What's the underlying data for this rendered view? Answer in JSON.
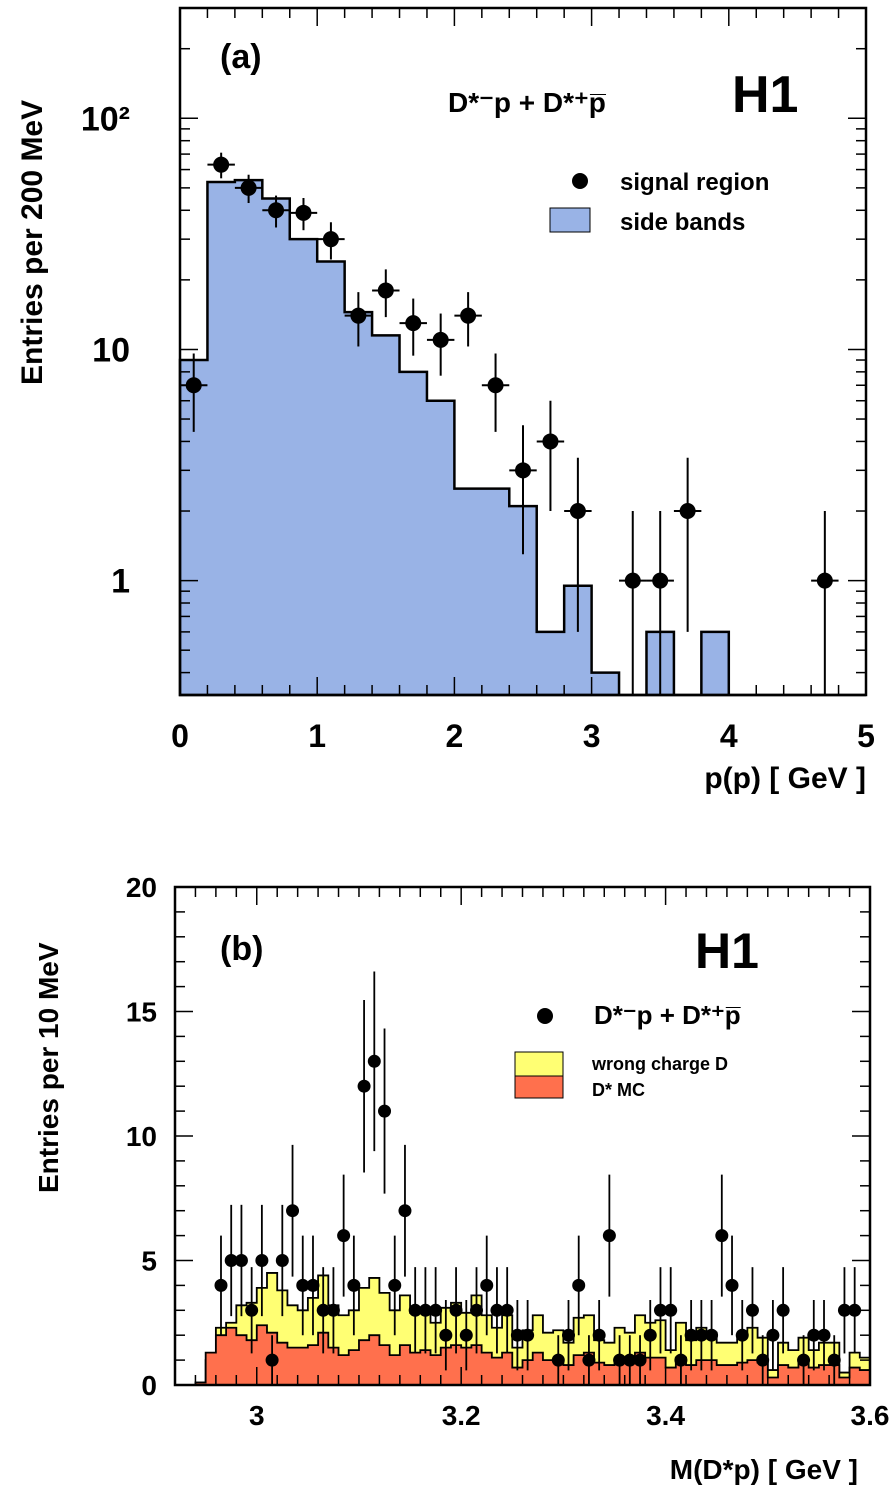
{
  "chart_data": [
    {
      "type": "bar",
      "panel_label": "(a)",
      "experiment": "H1",
      "channel_label": "D*⁻p + D*⁺p̅",
      "xlabel": "p(p) [ GeV ]",
      "ylabel": "Entries per 200 MeV",
      "xlim": [
        0,
        5
      ],
      "ylim": [
        0.32,
        300
      ],
      "yscale": "log",
      "x_ticks": [
        "0",
        "1",
        "2",
        "3",
        "4",
        "5"
      ],
      "y_ticks": [
        {
          "value": 1,
          "label": "1"
        },
        {
          "value": 10,
          "label": "10"
        },
        {
          "value": 100,
          "label": "10²"
        }
      ],
      "legend": {
        "position": "top-right",
        "entries": [
          "signal region",
          "side bands"
        ]
      },
      "colors": {
        "side_bands": "#99b3e6"
      },
      "series": [
        {
          "name": "side bands",
          "kind": "histogram",
          "bin_edges": [
            0.0,
            0.2,
            0.4,
            0.6,
            0.8,
            1.0,
            1.2,
            1.4,
            1.6,
            1.8,
            2.0,
            2.2,
            2.4,
            2.6,
            2.8,
            3.0,
            3.2,
            3.4,
            3.6,
            3.8,
            4.0,
            4.2,
            4.4,
            4.6,
            4.8,
            5.0
          ],
          "values": [
            9,
            53,
            54,
            45,
            30,
            24,
            14.5,
            11.5,
            8,
            6,
            2.5,
            2.5,
            2.1,
            0.6,
            0.95,
            0.4,
            0,
            0.6,
            0,
            0.6,
            0,
            0,
            0,
            0,
            0
          ]
        },
        {
          "name": "signal region",
          "kind": "points",
          "x": [
            0.1,
            0.3,
            0.5,
            0.7,
            0.9,
            1.1,
            1.3,
            1.5,
            1.7,
            1.9,
            2.1,
            2.3,
            2.5,
            2.7,
            2.9,
            3.3,
            3.5,
            3.7,
            4.7
          ],
          "y": [
            7,
            63,
            50,
            40,
            39,
            30,
            14,
            18,
            13,
            11,
            14,
            7,
            3,
            4,
            2,
            1,
            1,
            2,
            1
          ],
          "err_lo": [
            2.6,
            8,
            7,
            6.3,
            6.2,
            5.5,
            3.7,
            4.2,
            3.6,
            3.3,
            3.7,
            2.6,
            1.7,
            2,
            1.4,
            1,
            1,
            1.4,
            1
          ],
          "err_hi": [
            2.6,
            8,
            7,
            6.3,
            6.2,
            5.5,
            3.7,
            4.2,
            3.6,
            3.3,
            3.7,
            2.6,
            1.7,
            2,
            1.4,
            1,
            1,
            1.4,
            1
          ]
        }
      ]
    },
    {
      "type": "bar",
      "panel_label": "(b)",
      "experiment": "H1",
      "channel_label": "D*⁻p + D*⁺p̅",
      "xlabel": "M(D*p) [ GeV ]",
      "ylabel": "Entries per 10 MeV",
      "xlim": [
        2.92,
        3.6
      ],
      "ylim": [
        0,
        20
      ],
      "x_ticks": [
        "3",
        "3.2",
        "3.4",
        "3.6"
      ],
      "y_ticks": [
        "0",
        "5",
        "10",
        "15",
        "20"
      ],
      "legend": {
        "position": "top-right",
        "entries": [
          "D*⁻p + D*⁺p̅",
          "wrong charge D",
          "D* MC"
        ]
      },
      "colors": {
        "wrong_charge": "#ffff73",
        "dstar_mc": "#ff704d"
      },
      "x_start": 2.93,
      "bin_width": 0.01,
      "series": [
        {
          "name": "wrong charge D",
          "kind": "histogram_stacked_total",
          "values": [
            0,
            0.1,
            1,
            2.3,
            2.5,
            3.2,
            3.3,
            3.9,
            4.5,
            3.8,
            3.2,
            3,
            3.5,
            4.4,
            3.2,
            2.8,
            3,
            3.9,
            4.3,
            3.7,
            3,
            3.6,
            2.9,
            3.1,
            2.5,
            3.1,
            3.3,
            2.9,
            3.6,
            2.8,
            2.3,
            2.8,
            1.5,
            2.2,
            2.8,
            2.1,
            2.2,
            1.7,
            2.7,
            2.8,
            1.8,
            1.7,
            2.3,
            2.1,
            2.8,
            2.5,
            2.6,
            1.4,
            2.5,
            1.8,
            2.3,
            2.1,
            1.7,
            1.7,
            2,
            2.3,
            1.9,
            0.6,
            1.7,
            1.4,
            1.9,
            1.4,
            1.7,
            1.7,
            0.5,
            1.3,
            1.1,
            1.2
          ]
        },
        {
          "name": "D* MC",
          "kind": "histogram",
          "values": [
            0,
            0.1,
            1.3,
            2,
            2.3,
            2,
            1.8,
            2.4,
            2.1,
            1.7,
            1.5,
            1.5,
            1.6,
            2.1,
            1.5,
            1.2,
            1.4,
            1.8,
            2,
            1.6,
            1.2,
            1.6,
            1.3,
            1.4,
            1.2,
            1.5,
            1.6,
            1.5,
            1.6,
            1.3,
            1.1,
            1.3,
            0.7,
            1,
            1.3,
            1,
            1,
            0.8,
            1.2,
            1.3,
            0.9,
            0.8,
            1,
            1,
            1.3,
            1.1,
            1.1,
            0.7,
            1.1,
            0.8,
            1,
            1,
            0.8,
            0.8,
            0.9,
            1,
            0.9,
            0.3,
            0.8,
            0.7,
            0.9,
            0.7,
            0.8,
            0.8,
            0.3,
            0.7,
            0.6,
            0.6
          ]
        },
        {
          "name": "D*⁻p + D*⁺p̅",
          "kind": "points",
          "y": [
            0,
            0,
            0,
            4,
            5,
            5,
            3,
            5,
            1,
            5,
            7,
            4,
            4,
            3,
            3,
            6,
            4,
            12,
            13,
            11,
            4,
            7,
            3,
            3,
            3,
            2,
            3,
            2,
            3,
            4,
            3,
            3,
            2,
            2,
            0,
            0,
            1,
            2,
            4,
            1,
            2,
            6,
            1,
            1,
            1,
            2,
            3,
            3,
            1,
            2,
            2,
            2,
            6,
            4,
            2,
            3,
            1,
            2,
            3,
            0,
            1,
            2,
            2,
            1,
            3,
            3
          ]
        }
      ]
    }
  ]
}
